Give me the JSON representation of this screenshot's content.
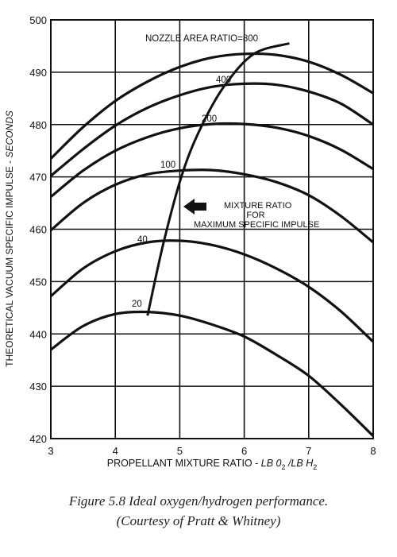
{
  "chart_data": {
    "type": "line",
    "xlabel": "PROPELLANT MIXTURE RATIO - ",
    "xlabel_units": "LB 0",
    "xlabel_units_sub1": "2",
    "xlabel_units_mid": " /LB H",
    "xlabel_units_sub2": "2",
    "ylabel": "THEORETICAL VACUUM SPECIFIC IMPULSE - ",
    "ylabel_units": "SECONDS",
    "xlim": [
      3,
      8
    ],
    "ylim": [
      420,
      500
    ],
    "x_ticks": [
      3,
      4,
      5,
      6,
      7,
      8
    ],
    "y_ticks": [
      420,
      430,
      440,
      450,
      460,
      470,
      480,
      490,
      500
    ],
    "grid": true,
    "series": [
      {
        "name": "20",
        "x": [
          3,
          3.5,
          4,
          4.5,
          5,
          5.5,
          6,
          6.5,
          7,
          7.5,
          8
        ],
        "y": [
          437,
          441.5,
          443.8,
          444.2,
          443.5,
          441.8,
          439.5,
          436,
          432,
          426.5,
          420.5
        ]
      },
      {
        "name": "40",
        "x": [
          3,
          3.5,
          4,
          4.5,
          5,
          5.5,
          6,
          6.5,
          7,
          7.5,
          8
        ],
        "y": [
          447.2,
          452.5,
          455.8,
          457.5,
          457.8,
          457,
          455.2,
          452.5,
          449,
          444.3,
          438.5
        ]
      },
      {
        "name": "100",
        "x": [
          3,
          3.5,
          4,
          4.5,
          5,
          5.5,
          6,
          6.5,
          7,
          7.5,
          8
        ],
        "y": [
          459.8,
          465,
          468.5,
          470.5,
          471.2,
          471.3,
          470.5,
          469,
          466.5,
          462.5,
          457.5
        ]
      },
      {
        "name": "200",
        "x": [
          3,
          3.5,
          4,
          4.5,
          5,
          5.5,
          6,
          6.5,
          7,
          7.5,
          8
        ],
        "y": [
          466.2,
          471.2,
          475,
          477.6,
          479.3,
          480.1,
          480.1,
          479.4,
          477.8,
          475.2,
          471.5
        ]
      },
      {
        "name": "400",
        "x": [
          3,
          3.5,
          4,
          4.5,
          5,
          5.5,
          6,
          6.5,
          7,
          7.5,
          8
        ],
        "y": [
          470.2,
          475.3,
          479.8,
          483.2,
          485.6,
          487.2,
          487.8,
          487.6,
          486.3,
          484,
          480
        ]
      },
      {
        "name": "800",
        "x": [
          3,
          3.5,
          4,
          4.5,
          5,
          5.5,
          6,
          6.5,
          7,
          7.5,
          8
        ],
        "y": [
          473.5,
          479.5,
          484.5,
          488.2,
          491,
          492.8,
          493.5,
          493.3,
          492,
          489.5,
          486
        ]
      },
      {
        "name": "MIXTURE RATIO FOR MAXIMUM SPECIFIC IMPULSE",
        "x": [
          4.5,
          4.75,
          5.05,
          5.35,
          5.7,
          6.15,
          6.7
        ],
        "y": [
          443.5,
          457.5,
          471,
          480,
          487.5,
          493.5,
          495.5
        ]
      }
    ],
    "annotations": {
      "nozzle_prefix": "NOZZLE AREA RATIO=",
      "curve_labels": [
        "20",
        "40",
        "100",
        "200",
        "400",
        "800"
      ],
      "mixture_line1": "MIXTURE RATIO",
      "mixture_line2": "FOR",
      "mixture_line3": "MAXIMUM SPECIFIC IMPULSE"
    }
  },
  "caption": {
    "line1": "Figure 5.8  Ideal oxygen/hydrogen performance.",
    "line2": "(Courtesy of Pratt & Whitney)"
  }
}
